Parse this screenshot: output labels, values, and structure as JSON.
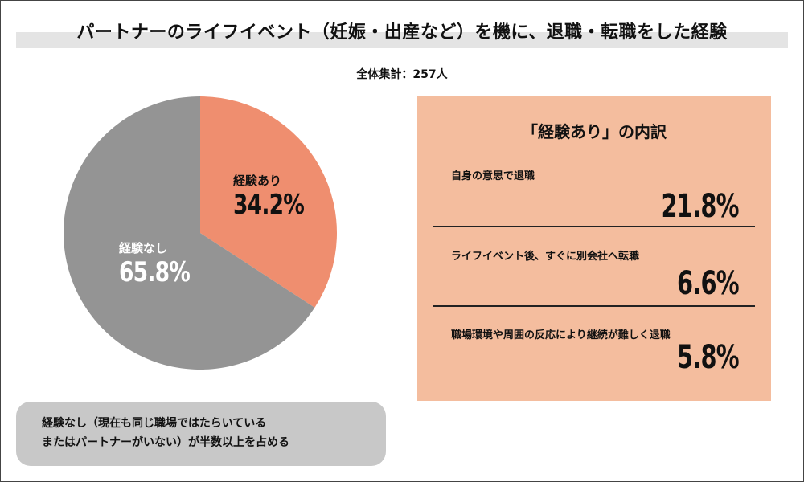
{
  "title": "パートナーのライフイベント（妊娠・出産など）を機に、退職・転職をした経験",
  "total_label": "全体集計：257人",
  "chart_data": {
    "type": "pie",
    "title": "パートナーのライフイベント（妊娠・出産など）を機に、退職・転職をした経験",
    "total_n": 257,
    "slices": [
      {
        "name": "経験あり",
        "value": 34.2,
        "label": "34.2%",
        "color": "#ef8e6f"
      },
      {
        "name": "経験なし",
        "value": 65.8,
        "label": "65.8%",
        "color": "#949494"
      }
    ]
  },
  "breakdown": {
    "title": "「経験あり」の内訳",
    "items": [
      {
        "label": "自身の意思で退職",
        "value": "21.8%"
      },
      {
        "label": "ライフイベント後、すぐに別会社へ転職",
        "value": "6.6%"
      },
      {
        "label": "職場環境や周囲の反応により継続が難しく退職",
        "value": "5.8%"
      }
    ]
  },
  "note": {
    "line1": "経験なし（現在も同じ職場ではたらいている",
    "line2": "またはパートナーがいない）が半数以上を占める"
  }
}
